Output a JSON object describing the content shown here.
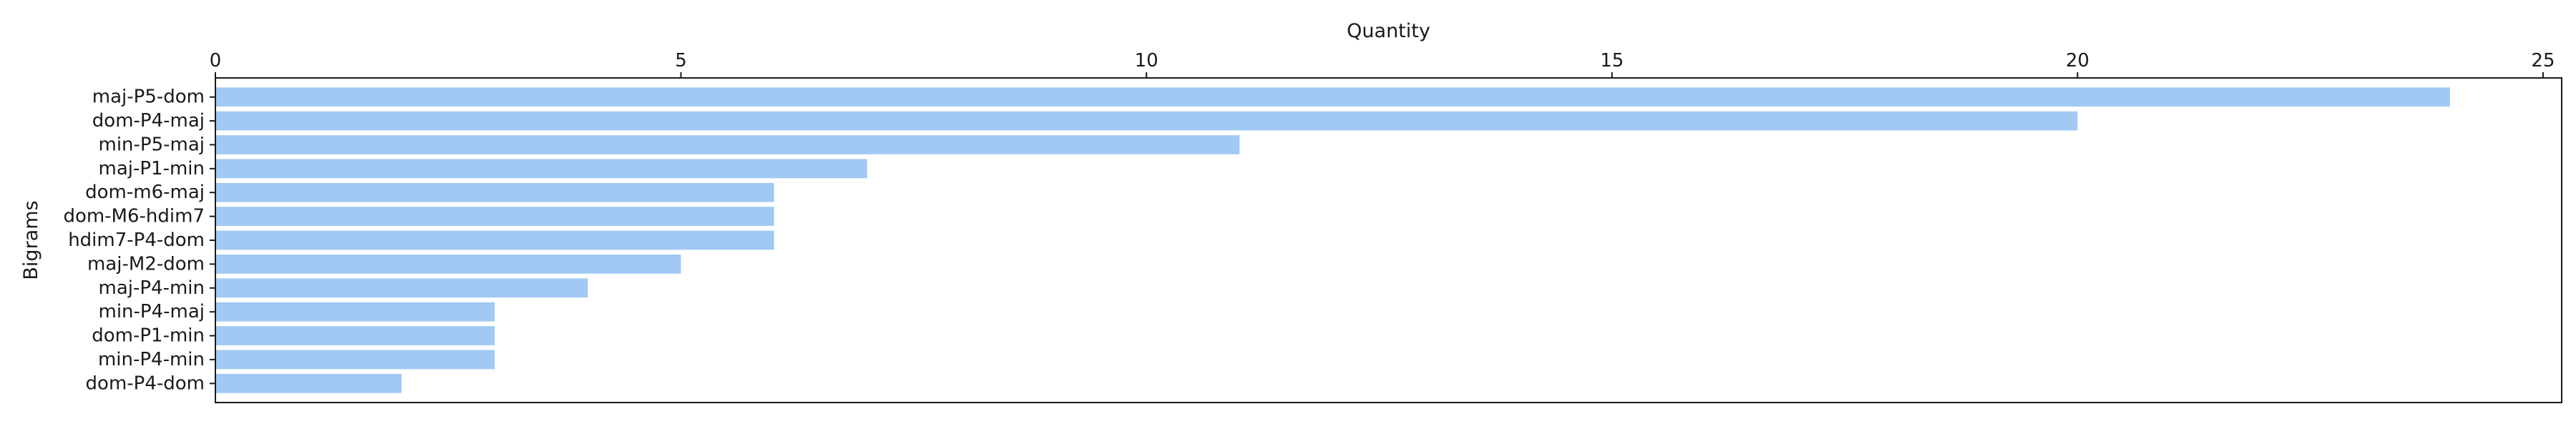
{
  "chart_data": {
    "type": "bar",
    "orientation": "horizontal",
    "xlabel": "Quantity",
    "ylabel": "Bigrams",
    "xlim": [
      0,
      25.2
    ],
    "x_ticks": [
      0,
      5,
      10,
      15,
      20,
      25
    ],
    "x_axis_position": "top",
    "grid": false,
    "bar_color": "#a1c9f4",
    "categories": [
      "maj-P5-dom",
      "dom-P4-maj",
      "min-P5-maj",
      "maj-P1-min",
      "dom-m6-maj",
      "dom-M6-hdim7",
      "hdim7-P4-dom",
      "maj-M2-dom",
      "maj-P4-min",
      "min-P4-maj",
      "dom-P1-min",
      "min-P4-min",
      "dom-P4-dom"
    ],
    "values": [
      24,
      20,
      11,
      7,
      6,
      6,
      6,
      5,
      4,
      3,
      3,
      3,
      2
    ]
  }
}
